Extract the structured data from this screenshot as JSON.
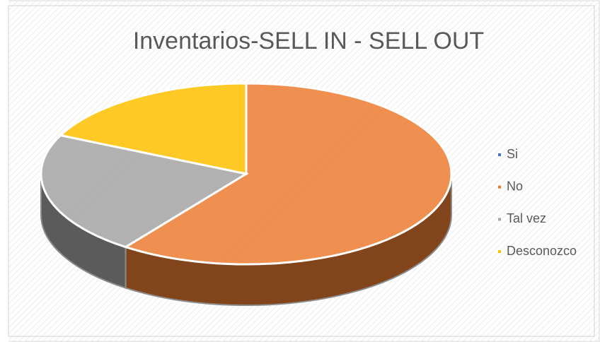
{
  "chart_data": {
    "type": "pie",
    "title": "Inventarios-SELL IN - SELL OUT",
    "categories": [
      "Si",
      "No",
      "Tal vez",
      "Desconozco"
    ],
    "values": [
      0,
      60,
      22,
      18
    ],
    "colors": [
      "#4472c4",
      "#ed7d31",
      "#a5a5a5",
      "#ffc000"
    ],
    "legend": "right"
  }
}
